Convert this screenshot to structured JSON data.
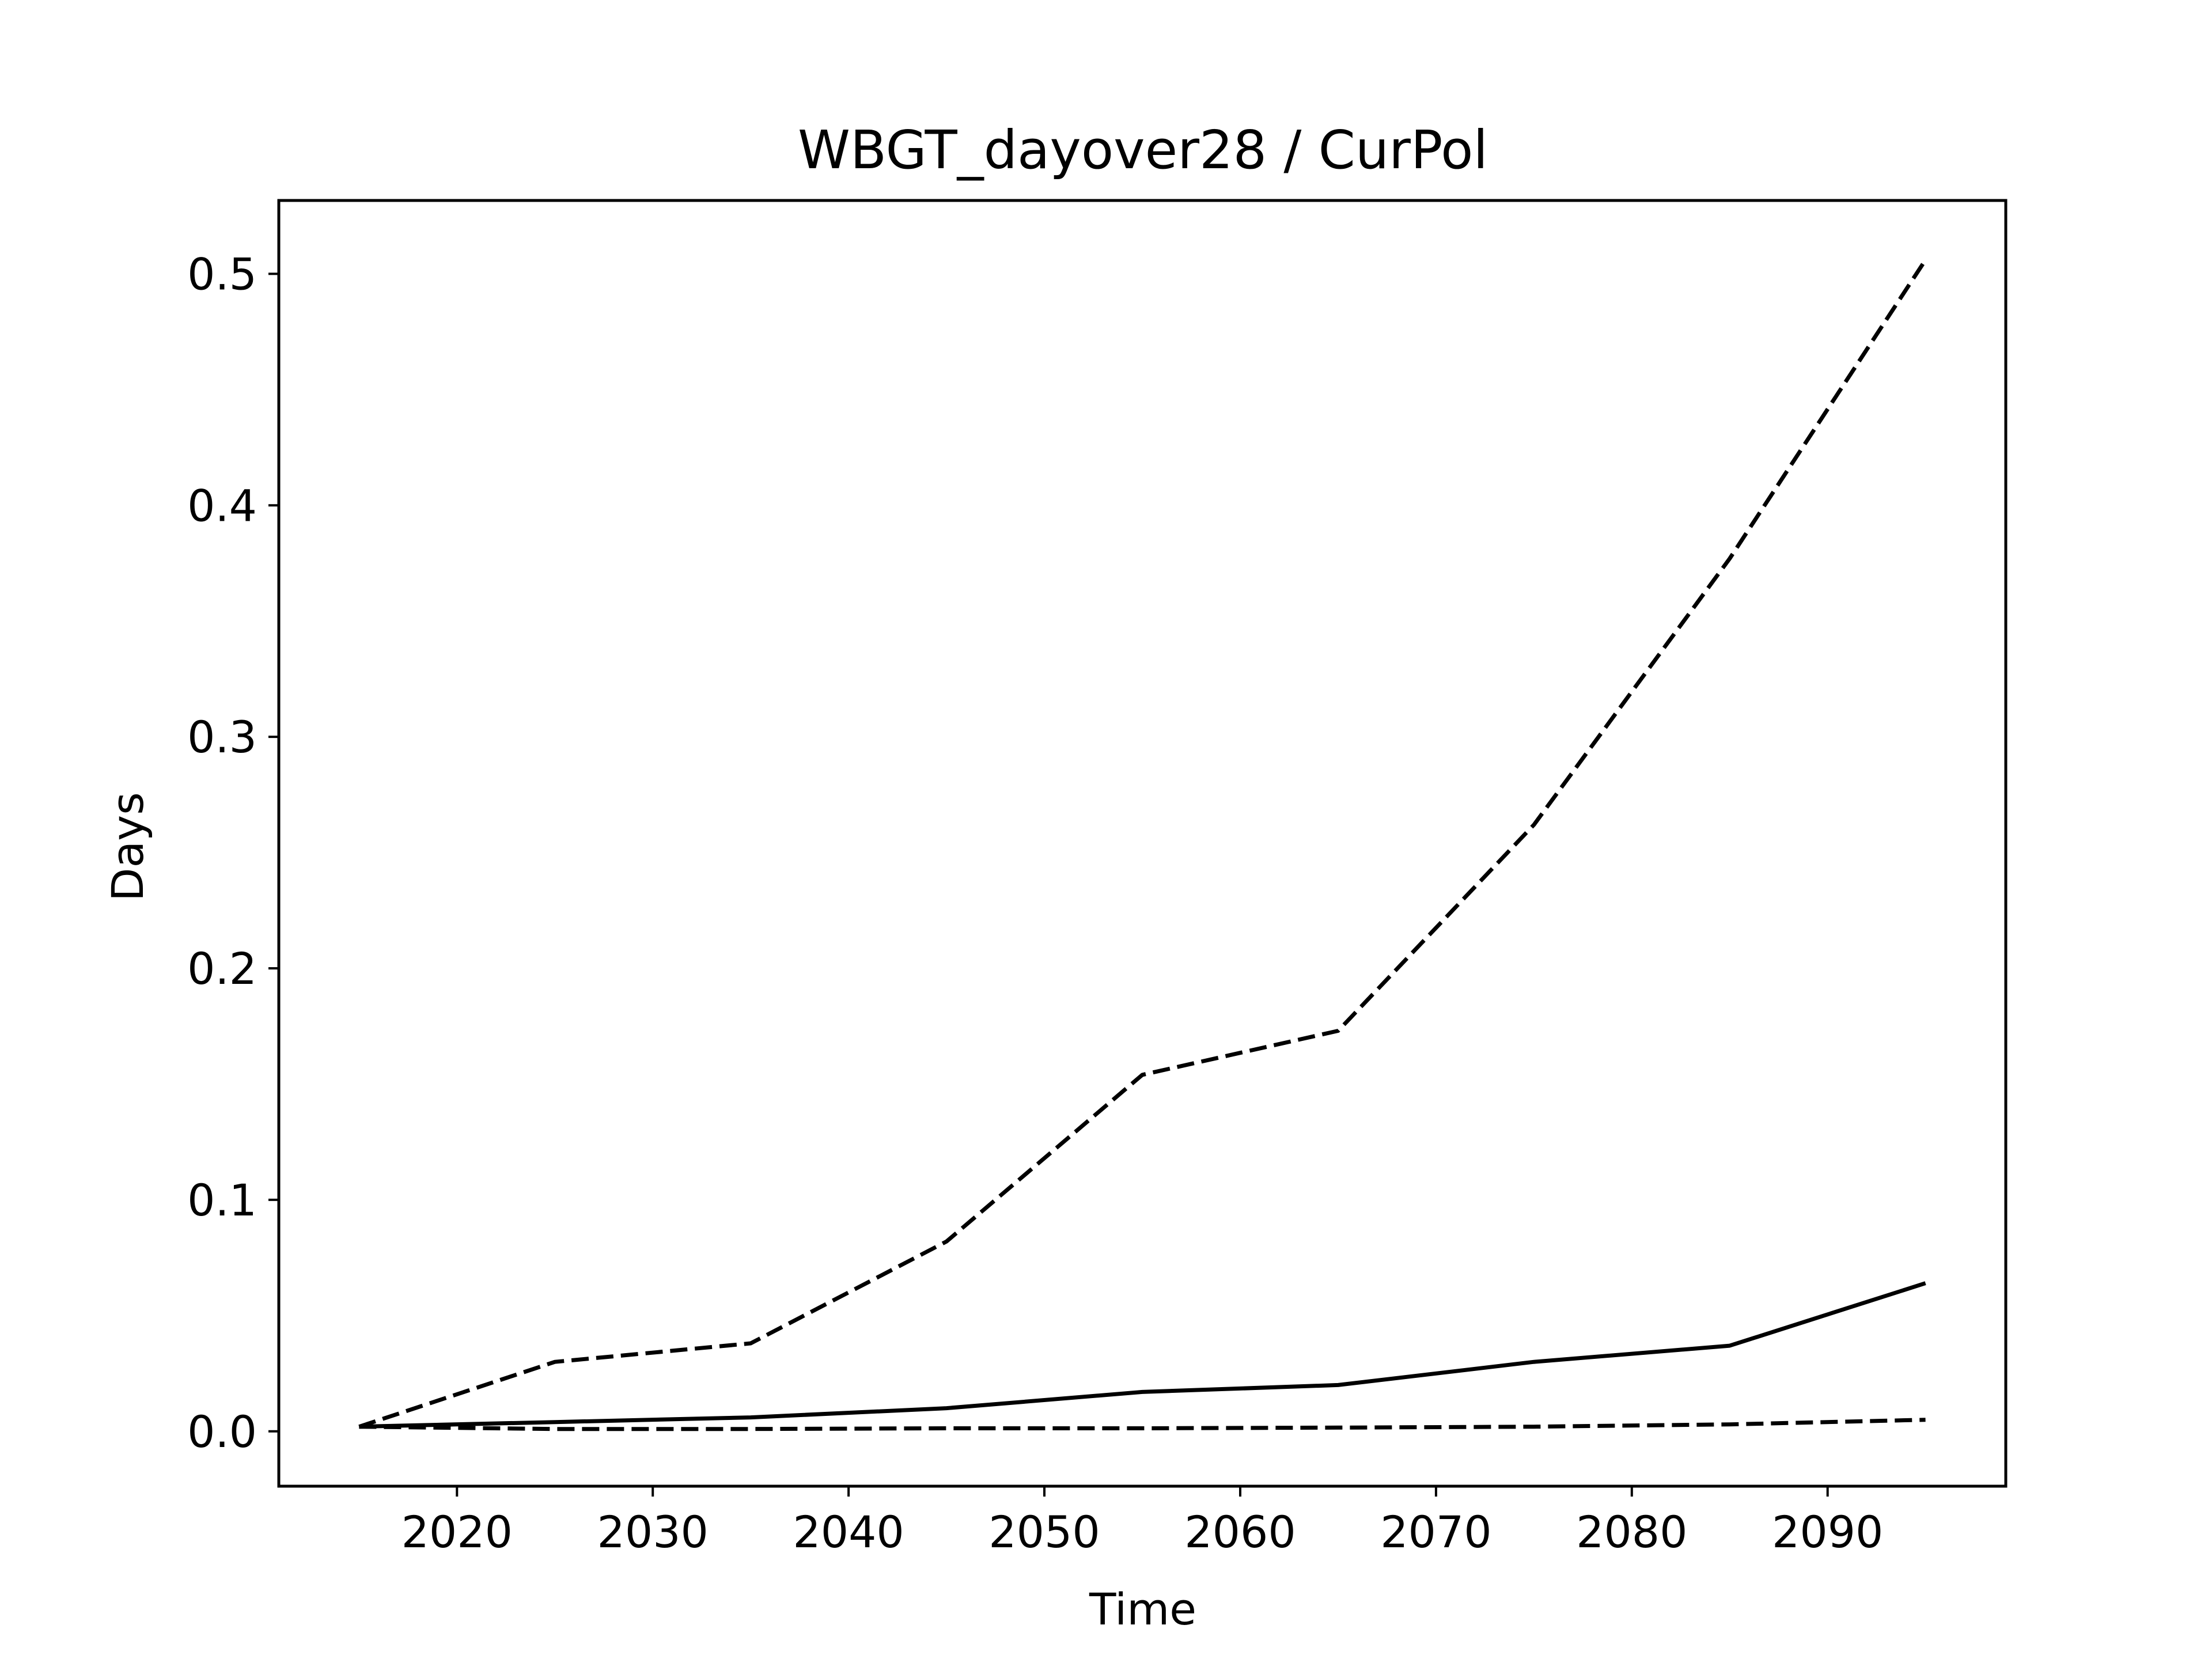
{
  "chart_data": {
    "type": "line",
    "title": "WBGT_dayover28 / CurPol",
    "xlabel": "Time",
    "ylabel": "Days",
    "x": [
      2015,
      2025,
      2035,
      2045,
      2055,
      2065,
      2075,
      2085,
      2095
    ],
    "xlim": [
      2010.9,
      2099.1
    ],
    "ylim": [
      -0.0237,
      0.5317
    ],
    "xticks": [
      2020,
      2030,
      2040,
      2050,
      2060,
      2070,
      2080,
      2090
    ],
    "yticks": [
      0.0,
      0.1,
      0.2,
      0.3,
      0.4,
      0.5
    ],
    "xtick_labels": [
      "2020",
      "2030",
      "2040",
      "2050",
      "2060",
      "2070",
      "2080",
      "2090"
    ],
    "ytick_labels": [
      "0.0",
      "0.1",
      "0.2",
      "0.3",
      "0.4",
      "0.5"
    ],
    "grid": false,
    "legend": false,
    "series": [
      {
        "style": "dashed",
        "color": "#000000",
        "values": [
          0.002,
          0.03,
          0.038,
          0.082,
          0.154,
          0.173,
          0.262,
          0.377,
          0.506
        ]
      },
      {
        "style": "solid",
        "color": "#000000",
        "values": [
          0.002,
          0.004,
          0.006,
          0.01,
          0.017,
          0.02,
          0.03,
          0.037,
          0.064
        ]
      },
      {
        "style": "dashed",
        "color": "#000000",
        "values": [
          0.002,
          0.001,
          0.001,
          0.0013,
          0.0013,
          0.0016,
          0.002,
          0.003,
          0.005
        ]
      }
    ]
  }
}
